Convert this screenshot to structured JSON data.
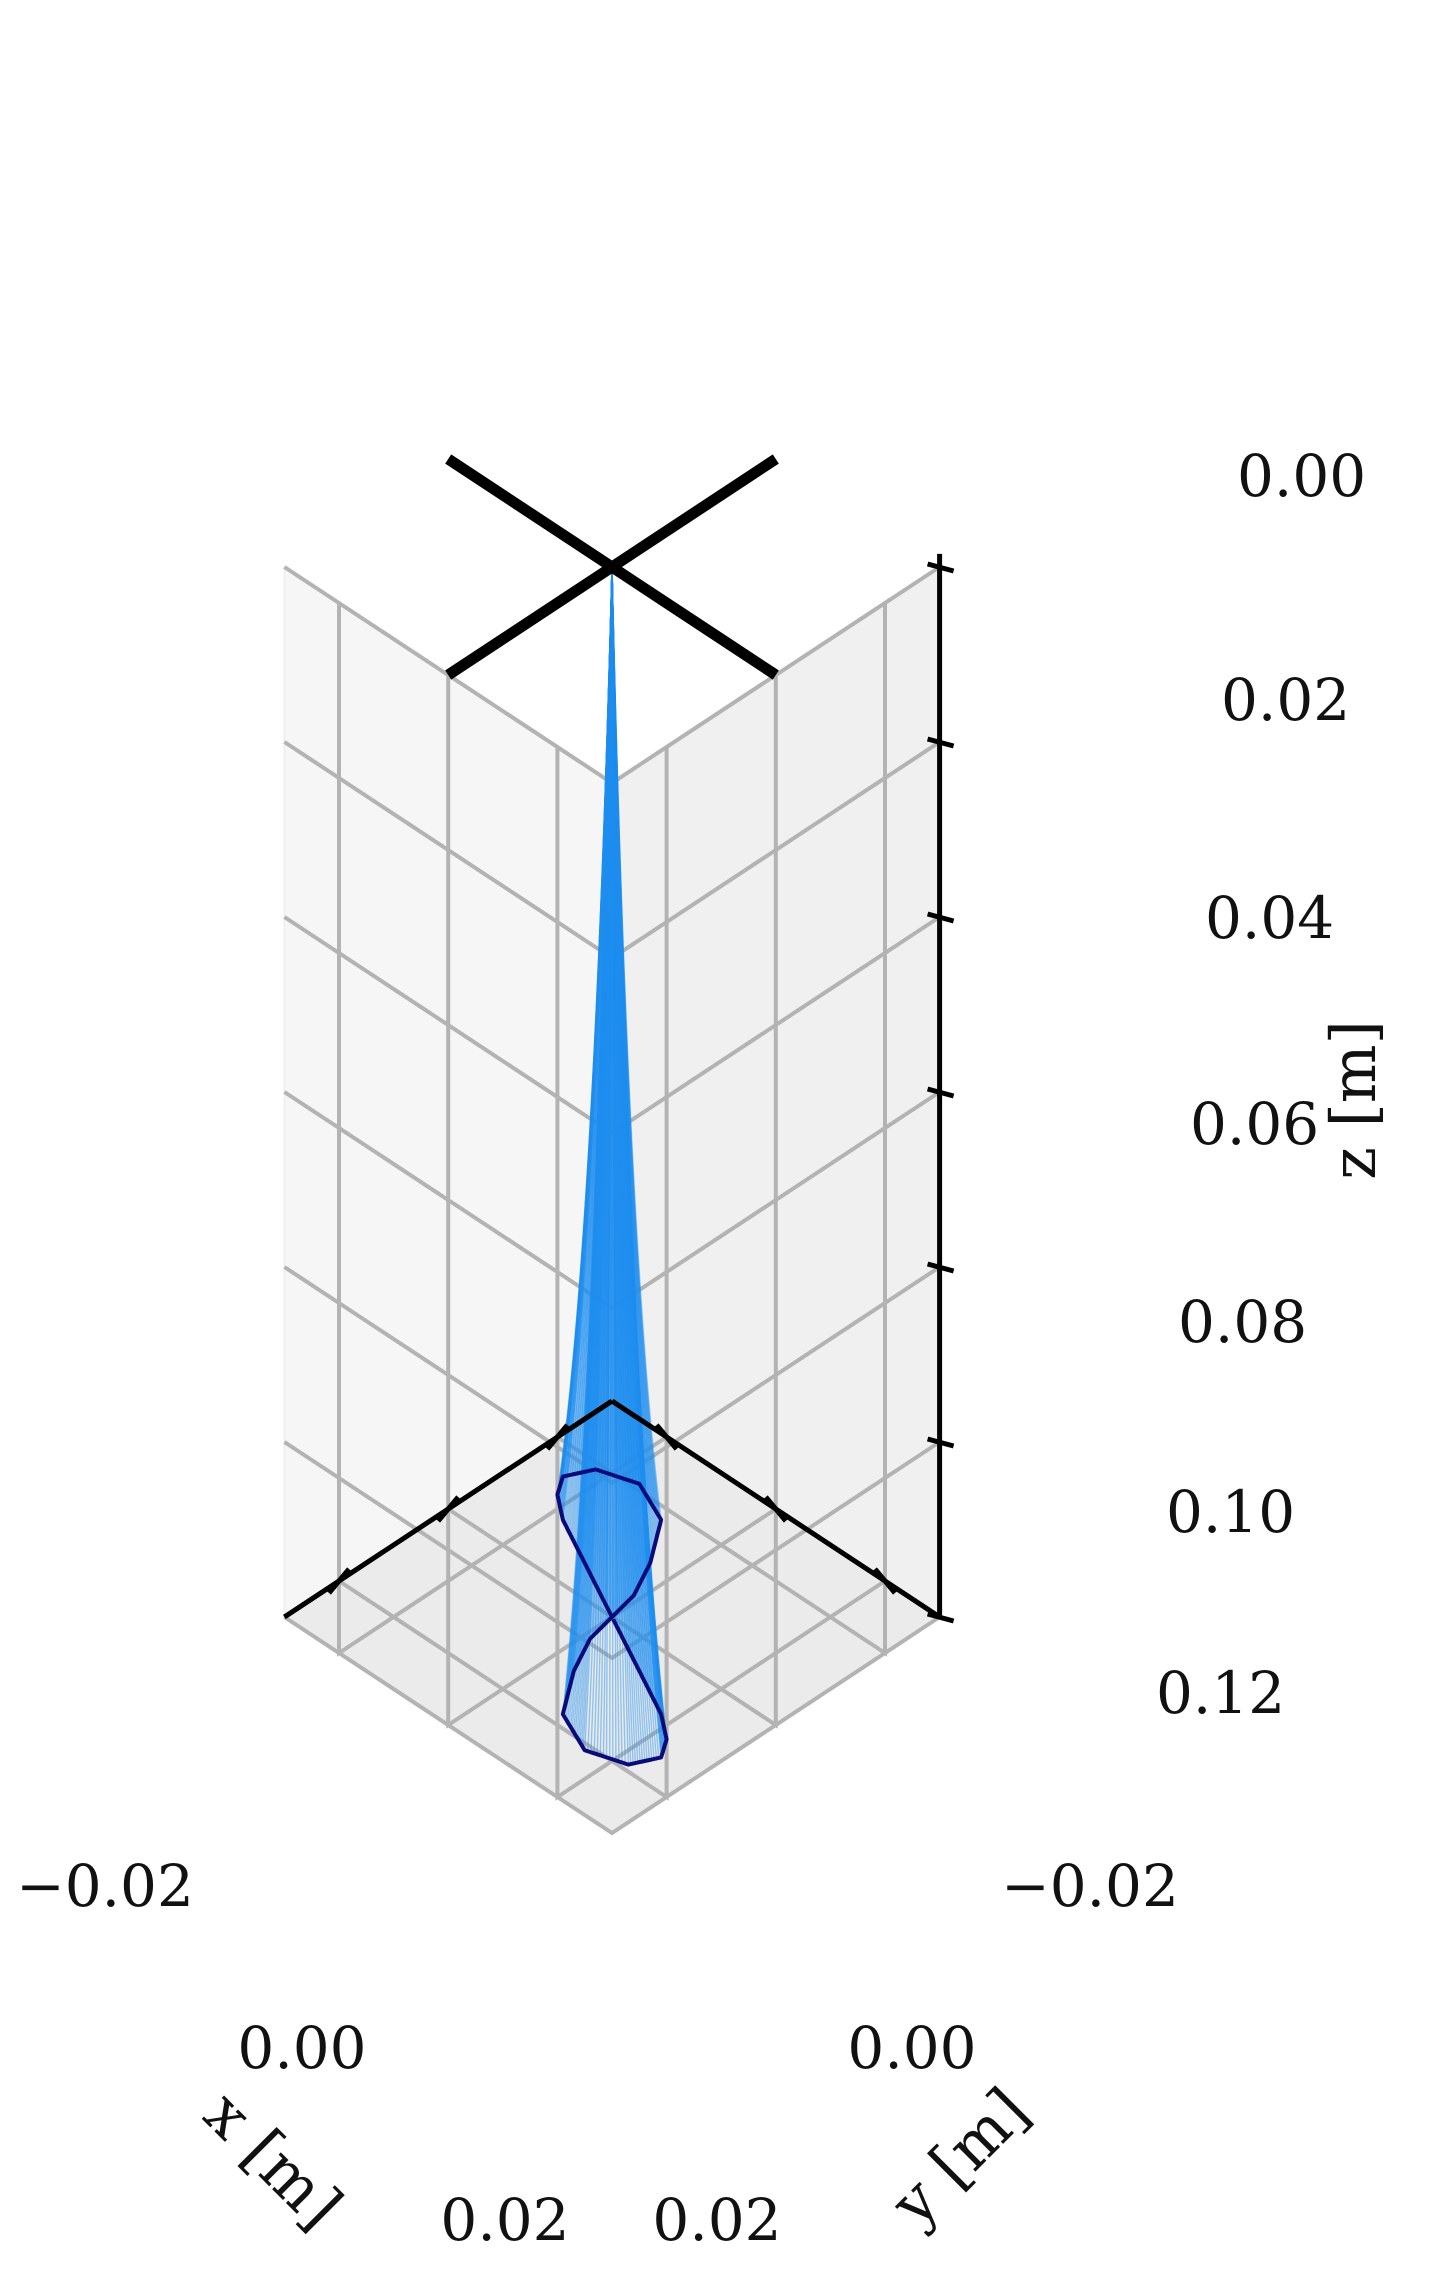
{
  "chart_data": {
    "type": "3d-line",
    "title": "",
    "xlabel": "x [m]",
    "ylabel": "y [m]",
    "zlabel": "z [m]",
    "x_ticks": [
      "−0.02",
      "0.00",
      "0.02"
    ],
    "y_ticks": [
      "−0.02",
      "0.00",
      "0.02"
    ],
    "z_ticks": [
      "0.00",
      "0.02",
      "0.04",
      "0.06",
      "0.08",
      "0.10",
      "0.12"
    ],
    "xlim": [
      -0.03,
      0.03
    ],
    "ylim": [
      -0.03,
      0.03
    ],
    "zlim": [
      0.0,
      0.12
    ],
    "z_axis_inverted": true,
    "grid": true,
    "suspension_point": [
      0.0,
      0.0,
      0.0
    ],
    "cross_arm_length": 0.03,
    "rod_tip_trajectory": [
      [
        0.0,
        0.0,
        0.12
      ],
      [
        0.006,
        0.003,
        0.12
      ],
      [
        0.012,
        0.006,
        0.12
      ],
      [
        0.018,
        0.009,
        0.12
      ],
      [
        0.022,
        0.012,
        0.12
      ],
      [
        0.024,
        0.015,
        0.12
      ],
      [
        0.022,
        0.019,
        0.12
      ],
      [
        0.016,
        0.021,
        0.12
      ],
      [
        0.009,
        0.018,
        0.12
      ],
      [
        0.004,
        0.011,
        0.12
      ],
      [
        0.001,
        0.005,
        0.12
      ],
      [
        0.0,
        0.0,
        0.12
      ],
      [
        -0.001,
        -0.005,
        0.12
      ],
      [
        -0.004,
        -0.011,
        0.12
      ],
      [
        -0.009,
        -0.018,
        0.12
      ],
      [
        -0.016,
        -0.021,
        0.12
      ],
      [
        -0.022,
        -0.019,
        0.12
      ],
      [
        -0.024,
        -0.015,
        0.12
      ],
      [
        -0.022,
        -0.012,
        0.12
      ],
      [
        -0.018,
        -0.009,
        0.12
      ],
      [
        -0.012,
        -0.006,
        0.12
      ],
      [
        -0.006,
        -0.003,
        0.12
      ],
      [
        0.0,
        0.0,
        0.12
      ]
    ],
    "colors": {
      "rods": "#1f8ff0",
      "trajectory": "#0a0a7a",
      "cross": "#000000",
      "axis": "#000000",
      "grid": "#b3b3b3"
    }
  }
}
